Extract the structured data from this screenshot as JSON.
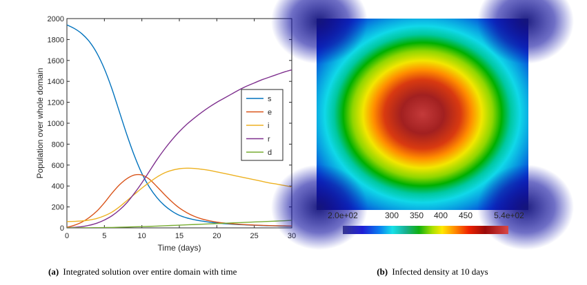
{
  "chart_data": [
    {
      "type": "line",
      "xlabel": "Time (days)",
      "ylabel": "Population over whole domain",
      "xlim": [
        0,
        30
      ],
      "ylim": [
        0,
        2000
      ],
      "xticks": [
        0,
        5,
        10,
        15,
        20,
        25,
        30
      ],
      "yticks": [
        0,
        200,
        400,
        600,
        800,
        1000,
        1200,
        1400,
        1600,
        1800,
        2000
      ],
      "grid": false,
      "legend_position": "right",
      "x": [
        0,
        1,
        2,
        3,
        4,
        5,
        6,
        7,
        8,
        9,
        10,
        11,
        12,
        13,
        14,
        15,
        16,
        17,
        18,
        19,
        20,
        21,
        22,
        23,
        24,
        25,
        26,
        27,
        28,
        29,
        30
      ],
      "series": [
        {
          "name": "s",
          "color": "#0072BD",
          "values": [
            1940,
            1905,
            1855,
            1780,
            1670,
            1520,
            1330,
            1110,
            890,
            690,
            520,
            390,
            290,
            215,
            160,
            120,
            95,
            78,
            65,
            55,
            46,
            40,
            35,
            31,
            28,
            25,
            22,
            20,
            18,
            16,
            15
          ]
        },
        {
          "name": "e",
          "color": "#D95319",
          "values": [
            5,
            25,
            55,
            100,
            160,
            240,
            330,
            410,
            470,
            505,
            505,
            465,
            395,
            320,
            250,
            190,
            145,
            110,
            85,
            68,
            55,
            46,
            39,
            34,
            30,
            27,
            24,
            22,
            20,
            19,
            18
          ]
        },
        {
          "name": "i",
          "color": "#EDB120",
          "values": [
            60,
            62,
            66,
            75,
            90,
            115,
            150,
            200,
            260,
            320,
            380,
            435,
            485,
            525,
            550,
            565,
            570,
            568,
            560,
            550,
            535,
            520,
            505,
            490,
            475,
            460,
            445,
            430,
            418,
            405,
            392
          ]
        },
        {
          "name": "r",
          "color": "#7E2F8E",
          "values": [
            0,
            5,
            12,
            25,
            45,
            75,
            115,
            170,
            240,
            330,
            430,
            540,
            650,
            750,
            840,
            920,
            990,
            1050,
            1105,
            1155,
            1200,
            1240,
            1280,
            1320,
            1355,
            1385,
            1415,
            1440,
            1465,
            1490,
            1510
          ]
        },
        {
          "name": "d",
          "color": "#77AC30",
          "values": [
            0,
            0,
            1,
            1,
            2,
            3,
            4,
            6,
            8,
            10,
            12,
            14,
            17,
            20,
            23,
            26,
            29,
            32,
            35,
            38,
            41,
            44,
            47,
            50,
            53,
            56,
            59,
            62,
            65,
            68,
            72
          ]
        }
      ],
      "caption_tag": "(a)",
      "caption_text": "Integrated solution over entire domain with time"
    },
    {
      "type": "heatmap",
      "colorbar_min_label": "2.0e+02",
      "colorbar_max_label": "5.4e+02",
      "colorbar_ticks": [
        "300",
        "350",
        "400",
        "450"
      ],
      "colorbar_colors": [
        "#2b2b8f",
        "#0000ff",
        "#00a0ff",
        "#00ffff",
        "#00c000",
        "#ffff00",
        "#ff7000",
        "#ff0000",
        "#8b0000",
        "#d04040"
      ],
      "caption_tag": "(b)",
      "caption_text": "Infected density at 10 days"
    }
  ]
}
